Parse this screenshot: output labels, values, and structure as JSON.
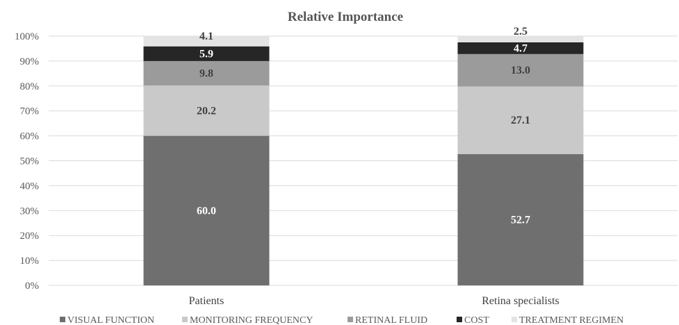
{
  "chart_data": {
    "type": "bar",
    "stacked": true,
    "title": "Relative Importance",
    "xlabel": "",
    "ylabel": "",
    "categories": [
      "Patients",
      "Retina specialists"
    ],
    "ylim": [
      0,
      100
    ],
    "yticks": [
      "0%",
      "10%",
      "20%",
      "30%",
      "40%",
      "50%",
      "60%",
      "70%",
      "80%",
      "90%",
      "100%"
    ],
    "grid": true,
    "legend_position": "bottom",
    "series": [
      {
        "name": "VISUAL FUNCTION",
        "values": [
          60.0,
          52.7
        ],
        "labels": [
          "60.0",
          "52.7"
        ],
        "color": "#6f6f6f",
        "label_color": "#ffffff"
      },
      {
        "name": "MONITORING FREQUENCY",
        "values": [
          20.2,
          27.1
        ],
        "labels": [
          "20.2",
          "27.1"
        ],
        "color": "#c9c9c9",
        "label_color": "#404040"
      },
      {
        "name": "RETINAL FLUID",
        "values": [
          9.8,
          13.0
        ],
        "labels": [
          "9.8",
          "13.0"
        ],
        "color": "#9b9b9b",
        "label_color": "#404040"
      },
      {
        "name": "COST",
        "values": [
          5.9,
          4.7
        ],
        "labels": [
          "5.9",
          "4.7"
        ],
        "color": "#262626",
        "label_color": "#ffffff"
      },
      {
        "name": "TREATMENT REGIMEN",
        "values": [
          4.1,
          2.5
        ],
        "labels": [
          "4.1",
          "2.5"
        ],
        "color": "#e3e3e3",
        "label_color": "#404040"
      }
    ]
  }
}
